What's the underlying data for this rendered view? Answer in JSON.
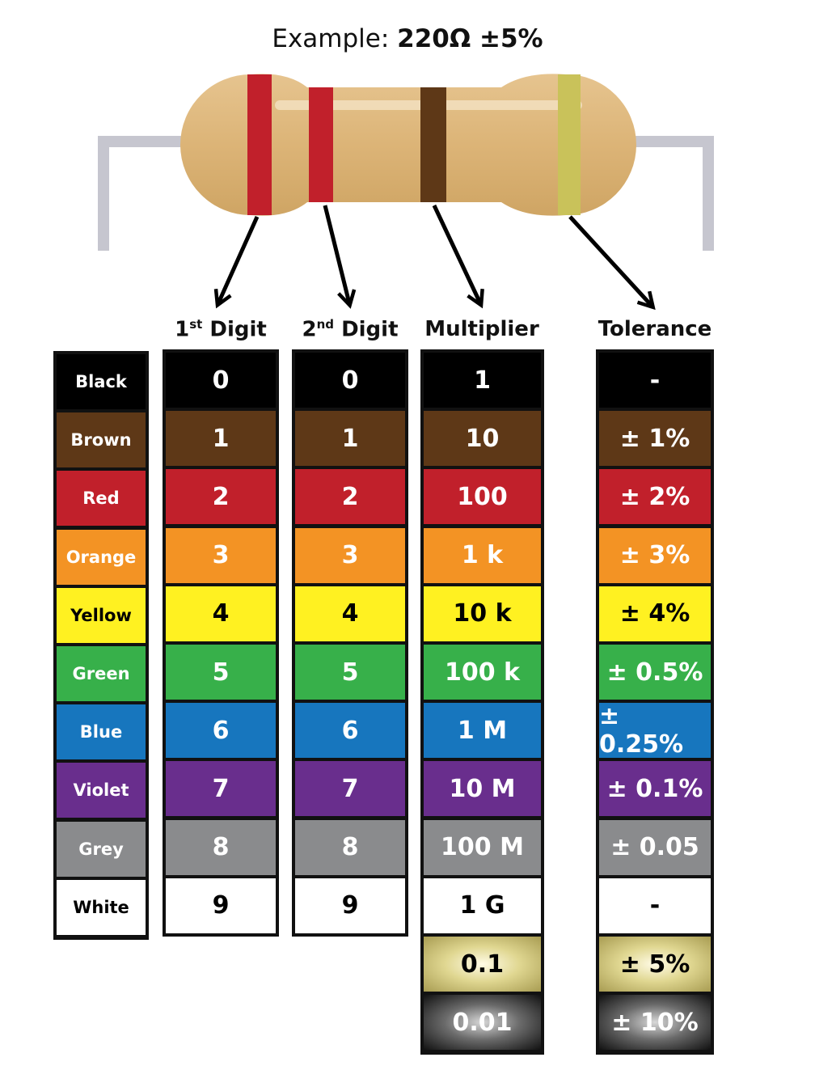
{
  "title": {
    "prefix": "Example:",
    "value": "220Ω  ±5%"
  },
  "headers": {
    "digit1": {
      "num": "1",
      "sup": "st",
      "word": "Digit"
    },
    "digit2": {
      "num": "2",
      "sup": "nd",
      "word": "Digit"
    },
    "multiplier": "Multiplier",
    "tolerance": "Tolerance"
  },
  "colors": {
    "black": "#000000",
    "brown": "#5e3817",
    "red": "#c1202b",
    "orange": "#f39324",
    "yellow": "#fff121",
    "green": "#37b04a",
    "blue": "#1776be",
    "violet": "#692e8d",
    "grey": "#8a8b8d",
    "white": "#ffffff",
    "gold": "#e0d791",
    "silver": "#6b6b6b",
    "body": "#dcb477",
    "lead": "#c6c6cf"
  },
  "rows": [
    {
      "name": "Black",
      "color": "black",
      "text": "#ffffff",
      "d1": "0",
      "d2": "0",
      "mult": "1",
      "tol": "-"
    },
    {
      "name": "Brown",
      "color": "brown",
      "text": "#ffffff",
      "d1": "1",
      "d2": "1",
      "mult": "10",
      "tol": "± 1%"
    },
    {
      "name": "Red",
      "color": "red",
      "text": "#ffffff",
      "d1": "2",
      "d2": "2",
      "mult": "100",
      "tol": "± 2%"
    },
    {
      "name": "Orange",
      "color": "orange",
      "text": "#ffffff",
      "d1": "3",
      "d2": "3",
      "mult": "1 k",
      "tol": "± 3%"
    },
    {
      "name": "Yellow",
      "color": "yellow",
      "text": "#000000",
      "d1": "4",
      "d2": "4",
      "mult": "10 k",
      "tol": "± 4%"
    },
    {
      "name": "Green",
      "color": "green",
      "text": "#ffffff",
      "d1": "5",
      "d2": "5",
      "mult": "100 k",
      "tol": "± 0.5%"
    },
    {
      "name": "Blue",
      "color": "blue",
      "text": "#ffffff",
      "d1": "6",
      "d2": "6",
      "mult": "1 M",
      "tol": "± 0.25%"
    },
    {
      "name": "Violet",
      "color": "violet",
      "text": "#ffffff",
      "d1": "7",
      "d2": "7",
      "mult": "10 M",
      "tol": "± 0.1%"
    },
    {
      "name": "Grey",
      "color": "grey",
      "text": "#ffffff",
      "d1": "8",
      "d2": "8",
      "mult": "100 M",
      "tol": "± 0.05"
    },
    {
      "name": "White",
      "color": "white",
      "text": "#000000",
      "d1": "9",
      "d2": "9",
      "mult": "1 G",
      "tol": "-"
    }
  ],
  "extra_rows": [
    {
      "color": "gold",
      "text": "#000000",
      "mult": "0.1",
      "tol": "± 5%"
    },
    {
      "color": "silver",
      "text": "#ffffff",
      "mult": "0.01",
      "tol": "± 10%"
    }
  ],
  "example_bands": [
    "red",
    "red",
    "brown",
    "gold"
  ]
}
